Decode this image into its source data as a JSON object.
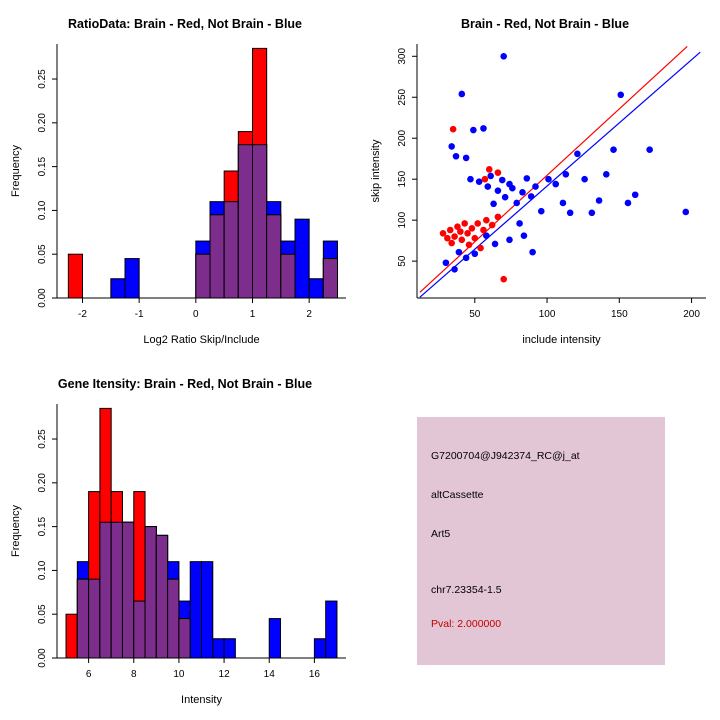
{
  "colors": {
    "red": "#FF0000",
    "blue": "#0000FF",
    "overlap": "#7D2E8D",
    "axis": "#000000",
    "info_bg": "#E3C6D6",
    "pval_text": "#C00000"
  },
  "chart_data": [
    {
      "type": "histogram",
      "title": "RatioData: Brain - Red, Not Brain - Blue",
      "xlabel": "Log2 Ratio Skip/Include",
      "ylabel": "Frequency",
      "xlim": [
        -2.45,
        2.65
      ],
      "ylim": [
        0,
        0.29
      ],
      "xticks": [
        -2,
        -1,
        0,
        1,
        2
      ],
      "xtick_labels": [
        "-2",
        "-1",
        "0",
        "1",
        "2"
      ],
      "yticks": [
        0,
        0.05,
        0.1,
        0.15,
        0.2,
        0.25
      ],
      "ytick_labels": [
        "0.00",
        "0.05",
        "0.10",
        "0.15",
        "0.20",
        "0.25"
      ],
      "bin_width": 0.25,
      "legend_meaning": {
        "red": "Brain",
        "blue": "Not Brain"
      },
      "bars": [
        {
          "x": -2.25,
          "red": 0.05,
          "blue": 0
        },
        {
          "x": -1.5,
          "red": 0,
          "blue": 0.022
        },
        {
          "x": -1.25,
          "red": 0,
          "blue": 0.045
        },
        {
          "x": 0.0,
          "red": 0.05,
          "blue": 0.065
        },
        {
          "x": 0.25,
          "red": 0.095,
          "blue": 0.11
        },
        {
          "x": 0.5,
          "red": 0.145,
          "blue": 0.11
        },
        {
          "x": 0.75,
          "red": 0.19,
          "blue": 0.175
        },
        {
          "x": 1.0,
          "red": 0.285,
          "blue": 0.175
        },
        {
          "x": 1.25,
          "red": 0.095,
          "blue": 0.11
        },
        {
          "x": 1.5,
          "red": 0.05,
          "blue": 0.065
        },
        {
          "x": 1.75,
          "red": 0,
          "blue": 0.09
        },
        {
          "x": 2.0,
          "red": 0,
          "blue": 0.022
        },
        {
          "x": 2.25,
          "red": 0.045,
          "blue": 0.065
        }
      ]
    },
    {
      "type": "scatter",
      "title": "Brain - Red, Not Brain - Blue",
      "xlabel": "include intensity",
      "ylabel": "skip intensity",
      "xlim": [
        10,
        210
      ],
      "ylim": [
        5,
        315
      ],
      "xticks": [
        50,
        100,
        150,
        200
      ],
      "xtick_labels": [
        "50",
        "100",
        "150",
        "200"
      ],
      "yticks": [
        50,
        100,
        150,
        200,
        250,
        300
      ],
      "ytick_labels": [
        "50",
        "100",
        "150",
        "200",
        "250",
        "300"
      ],
      "legend_meaning": {
        "red": "Brain",
        "blue": "Not Brain"
      },
      "red_points": [
        [
          35,
          211
        ],
        [
          60,
          162
        ],
        [
          66,
          158
        ],
        [
          57,
          150
        ],
        [
          28,
          84
        ],
        [
          31,
          78
        ],
        [
          33,
          88
        ],
        [
          34,
          72
        ],
        [
          36,
          80
        ],
        [
          38,
          92
        ],
        [
          40,
          86
        ],
        [
          41,
          76
        ],
        [
          43,
          96
        ],
        [
          45,
          84
        ],
        [
          46,
          70
        ],
        [
          48,
          90
        ],
        [
          50,
          78
        ],
        [
          52,
          96
        ],
        [
          54,
          66
        ],
        [
          56,
          88
        ],
        [
          58,
          100
        ],
        [
          62,
          94
        ],
        [
          66,
          104
        ],
        [
          70,
          28
        ]
      ],
      "blue_points": [
        [
          70,
          300
        ],
        [
          41,
          254
        ],
        [
          151,
          253
        ],
        [
          196,
          110
        ],
        [
          34,
          190
        ],
        [
          37,
          178
        ],
        [
          44,
          176
        ],
        [
          49,
          210
        ],
        [
          56,
          212
        ],
        [
          47,
          150
        ],
        [
          53,
          147
        ],
        [
          59,
          141
        ],
        [
          61,
          154
        ],
        [
          63,
          120
        ],
        [
          66,
          136
        ],
        [
          69,
          149
        ],
        [
          71,
          128
        ],
        [
          74,
          144
        ],
        [
          76,
          139
        ],
        [
          79,
          121
        ],
        [
          81,
          96
        ],
        [
          83,
          134
        ],
        [
          86,
          151
        ],
        [
          89,
          129
        ],
        [
          92,
          141
        ],
        [
          96,
          111
        ],
        [
          101,
          150
        ],
        [
          106,
          144
        ],
        [
          111,
          121
        ],
        [
          113,
          156
        ],
        [
          116,
          109
        ],
        [
          121,
          181
        ],
        [
          126,
          150
        ],
        [
          131,
          109
        ],
        [
          136,
          124
        ],
        [
          141,
          156
        ],
        [
          146,
          186
        ],
        [
          156,
          121
        ],
        [
          161,
          131
        ],
        [
          171,
          186
        ],
        [
          58,
          81
        ],
        [
          64,
          71
        ],
        [
          74,
          76
        ],
        [
          84,
          81
        ],
        [
          50,
          59
        ],
        [
          44,
          54
        ],
        [
          39,
          61
        ],
        [
          90,
          61
        ],
        [
          30,
          48
        ],
        [
          36,
          40
        ]
      ],
      "lines": [
        {
          "color": "red",
          "x1": 12,
          "y1": 12,
          "x2": 197,
          "y2": 312
        },
        {
          "color": "blue",
          "x1": 12,
          "y1": 6,
          "x2": 206,
          "y2": 305
        }
      ]
    },
    {
      "type": "histogram",
      "title": "Gene Itensity: Brain - Red, Not Brain - Blue",
      "xlabel": "Intensity",
      "ylabel": "Frequency",
      "xlim": [
        4.6,
        17.4
      ],
      "ylim": [
        0,
        0.29
      ],
      "xticks": [
        6,
        8,
        10,
        12,
        14,
        16
      ],
      "xtick_labels": [
        "6",
        "8",
        "10",
        "12",
        "14",
        "16"
      ],
      "yticks": [
        0,
        0.05,
        0.1,
        0.15,
        0.2,
        0.25
      ],
      "ytick_labels": [
        "0.00",
        "0.05",
        "0.10",
        "0.15",
        "0.20",
        "0.25"
      ],
      "bin_width": 0.5,
      "legend_meaning": {
        "red": "Brain",
        "blue": "Not Brain"
      },
      "bars": [
        {
          "x": 5.0,
          "red": 0.05,
          "blue": 0
        },
        {
          "x": 5.5,
          "red": 0.09,
          "blue": 0.11
        },
        {
          "x": 6.0,
          "red": 0.19,
          "blue": 0.09
        },
        {
          "x": 6.5,
          "red": 0.285,
          "blue": 0.155
        },
        {
          "x": 7.0,
          "red": 0.19,
          "blue": 0.155
        },
        {
          "x": 7.5,
          "red": 0.155,
          "blue": 0.155
        },
        {
          "x": 8.0,
          "red": 0.19,
          "blue": 0.065
        },
        {
          "x": 8.5,
          "red": 0.15,
          "blue": 0.15
        },
        {
          "x": 9.0,
          "red": 0.14,
          "blue": 0.14
        },
        {
          "x": 9.5,
          "red": 0.09,
          "blue": 0.11
        },
        {
          "x": 10.0,
          "red": 0.045,
          "blue": 0.065
        },
        {
          "x": 10.5,
          "red": 0,
          "blue": 0.11
        },
        {
          "x": 11.0,
          "red": 0,
          "blue": 0.11
        },
        {
          "x": 11.5,
          "red": 0,
          "blue": 0.022
        },
        {
          "x": 12.0,
          "red": 0,
          "blue": 0.022
        },
        {
          "x": 14.0,
          "red": 0,
          "blue": 0.045
        },
        {
          "x": 16.0,
          "red": 0,
          "blue": 0.022
        },
        {
          "x": 16.5,
          "red": 0,
          "blue": 0.065
        }
      ]
    }
  ],
  "info_panel": {
    "probe_id": "G7200704@J942374_RC@j_at",
    "event_type": "altCassette",
    "gene": "Art5",
    "location": "chr7.23354-1.5",
    "pval": "Pval: 2.000000"
  }
}
